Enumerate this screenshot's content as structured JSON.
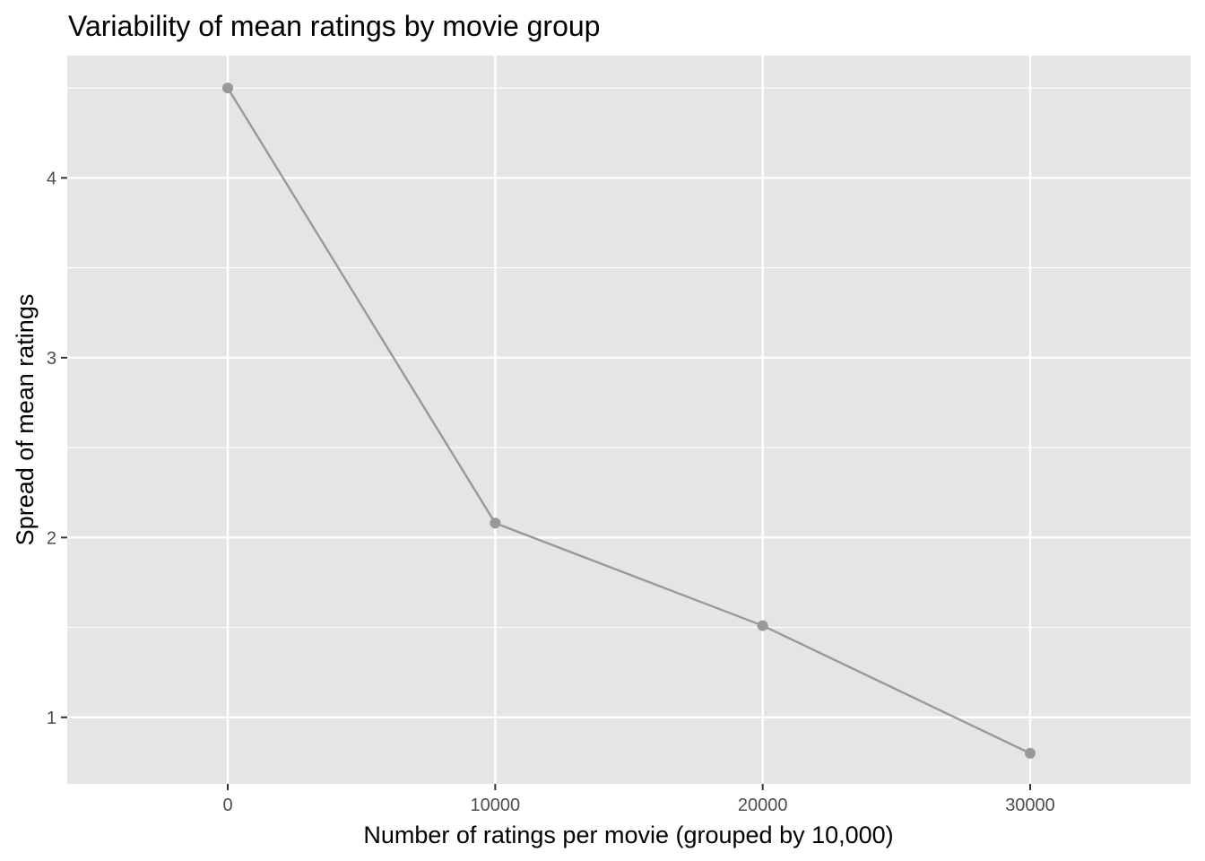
{
  "chart_data": {
    "type": "line",
    "title": "Variability of mean ratings by movie group",
    "xlabel": "Number of ratings per movie (grouped by 10,000)",
    "ylabel": "Spread of mean ratings",
    "x": [
      0,
      10000,
      20000,
      30000
    ],
    "series": [
      {
        "values": [
          4.5,
          2.08,
          1.51,
          0.8
        ]
      }
    ],
    "xlim": [
      -6000,
      36000
    ],
    "ylim": [
      0.63,
      4.68
    ],
    "x_ticks": [
      0,
      10000,
      20000,
      30000
    ],
    "x_tick_labels": [
      "0",
      "10000",
      "20000",
      "30000"
    ],
    "y_ticks": [
      1,
      2,
      3,
      4
    ],
    "y_tick_labels": [
      "1",
      "2",
      "3",
      "4"
    ],
    "y_minor_ticks": [
      1.5,
      2.5,
      3.5,
      4.5
    ],
    "grid": true,
    "legend": "none",
    "colors": {
      "panel": "#e5e5e5",
      "grid": "#ffffff",
      "series": "#999999",
      "tick_label": "#4d4d4d"
    }
  }
}
